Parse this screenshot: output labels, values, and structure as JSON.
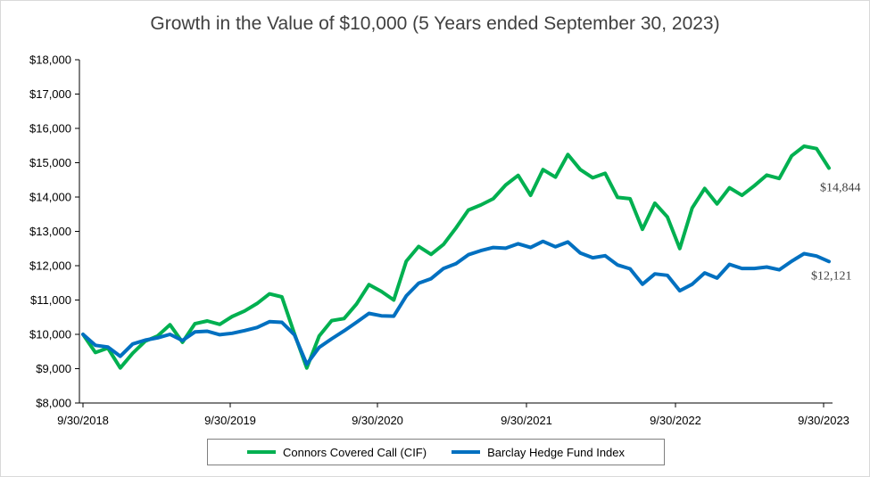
{
  "chart_data": {
    "type": "line",
    "title": "Growth in the Value of $10,000 (5 Years ended September 30, 2023)",
    "xlabel": "",
    "ylabel": "",
    "ylim": [
      8000,
      18000
    ],
    "y_ticks": [
      "$8,000",
      "$9,000",
      "$10,000",
      "$11,000",
      "$12,000",
      "$13,000",
      "$14,000",
      "$15,000",
      "$16,000",
      "$17,000",
      "$18,000"
    ],
    "x_ticks": [
      "9/30/2018",
      "9/30/2019",
      "9/30/2020",
      "9/30/2021",
      "9/30/2022",
      "9/30/2023"
    ],
    "x_tick_positions": [
      0,
      12,
      24,
      36,
      48,
      60
    ],
    "grid": false,
    "legend": "bottom",
    "series": [
      {
        "name": "Connors Covered Call (CIF)",
        "color": "#00b050",
        "end_label": "$14,844",
        "values": [
          10000,
          9470,
          9600,
          9020,
          9450,
          9800,
          9950,
          10280,
          9770,
          10310,
          10390,
          10290,
          10520,
          10680,
          10900,
          11180,
          11090,
          10020,
          9020,
          9950,
          10400,
          10460,
          10880,
          11450,
          11250,
          11000,
          12130,
          12560,
          12330,
          12620,
          13100,
          13620,
          13770,
          13950,
          14350,
          14630,
          14050,
          14800,
          14580,
          15240,
          14800,
          14560,
          14690,
          13990,
          13950,
          13060,
          13820,
          13420,
          12500,
          13680,
          14250,
          13800,
          14270,
          14050,
          14330,
          14640,
          14540,
          15200,
          15480,
          15410,
          14844
        ]
      },
      {
        "name": "Barclay Hedge Fund Index",
        "color": "#0070c0",
        "end_label": "$12,121",
        "values": [
          10000,
          9680,
          9630,
          9360,
          9720,
          9830,
          9900,
          10000,
          9820,
          10070,
          10090,
          9990,
          10030,
          10110,
          10200,
          10370,
          10350,
          9990,
          9130,
          9620,
          9870,
          10100,
          10350,
          10610,
          10540,
          10530,
          11120,
          11490,
          11620,
          11920,
          12060,
          12320,
          12440,
          12530,
          12510,
          12640,
          12530,
          12710,
          12550,
          12690,
          12370,
          12230,
          12290,
          12020,
          11910,
          11460,
          11760,
          11720,
          11270,
          11460,
          11790,
          11640,
          12040,
          11920,
          11920,
          11960,
          11880,
          12130,
          12350,
          12280,
          12121
        ]
      }
    ]
  }
}
